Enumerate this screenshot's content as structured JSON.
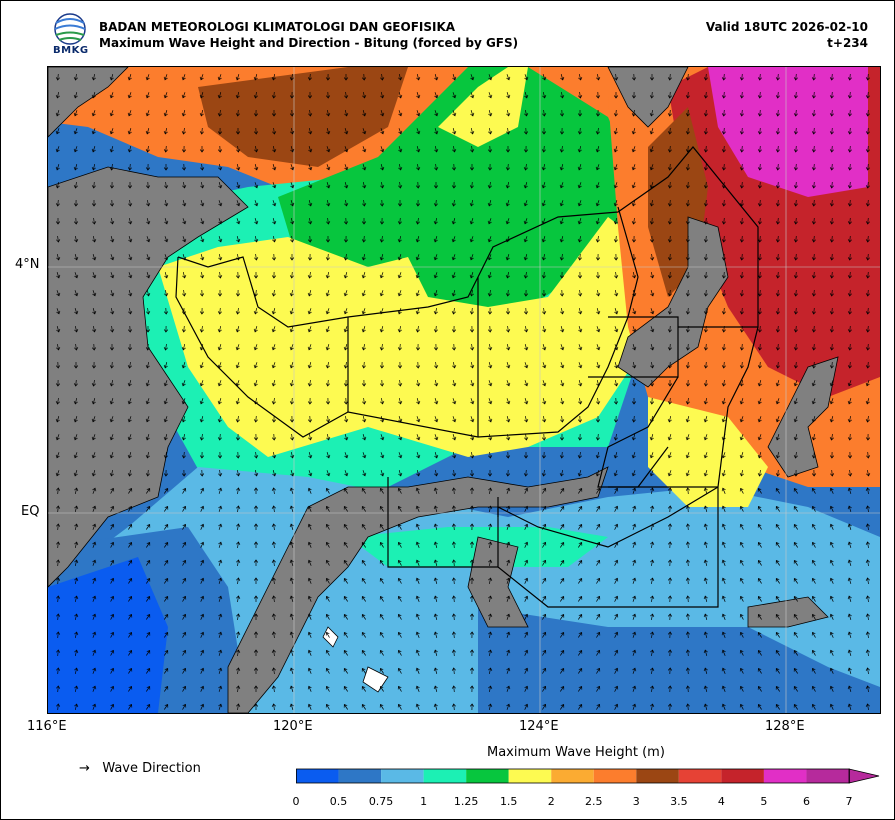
{
  "header": {
    "agency": "BADAN METEOROLOGI KLIMATOLOGI DAN GEOFISIKA",
    "subtitle": "Maximum Wave Height and Direction - Bitung (forced by GFS)",
    "valid": "Valid 18UTC 2026-02-10",
    "lead": "t+234",
    "logo_text": "BMKG"
  },
  "axes": {
    "lat_labels": [
      "4°N",
      "EQ"
    ],
    "lon_labels": [
      "116°E",
      "120°E",
      "124°E",
      "128°E"
    ]
  },
  "legend": {
    "arrow_label": "Wave Direction",
    "arrow_glyph": "→",
    "colorbar_title": "Maximum Wave Height (m)",
    "ticks": [
      "0",
      "0.5",
      "0.75",
      "1",
      "1.25",
      "1.5",
      "2",
      "2.5",
      "3",
      "3.5",
      "4",
      "5",
      "6",
      "7"
    ],
    "colors": [
      "#0a5cf0",
      "#2e77c6",
      "#5ab9e6",
      "#1cf0b4",
      "#07c63e",
      "#fdfa51",
      "#fbab32",
      "#fc7d2d",
      "#9b4613",
      "#e64235",
      "#c5232b",
      "#e12fc6",
      "#b62a9c"
    ]
  },
  "colors": {
    "land": "#808080",
    "grid": "#c8c8c8"
  }
}
